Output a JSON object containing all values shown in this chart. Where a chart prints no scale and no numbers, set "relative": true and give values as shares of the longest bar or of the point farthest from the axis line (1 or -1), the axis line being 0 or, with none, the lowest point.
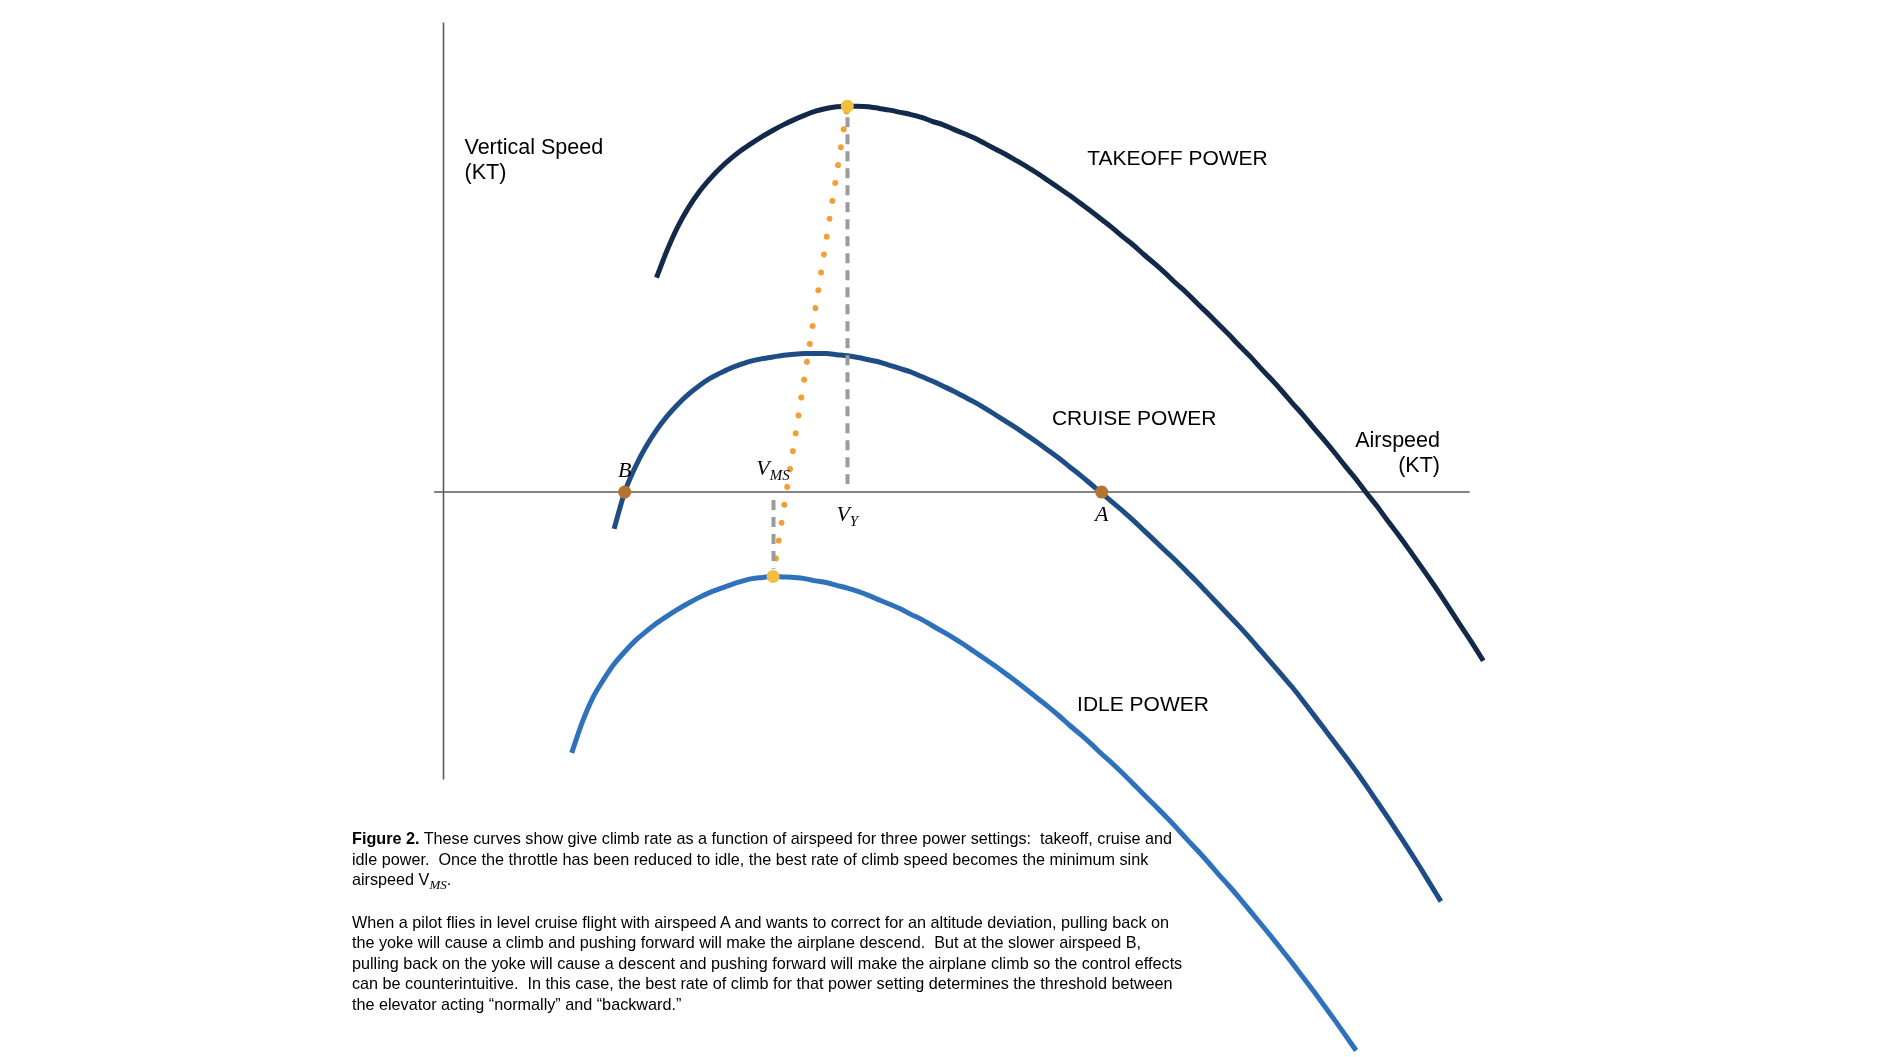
{
  "chart_data": {
    "type": "line",
    "relative": true,
    "xlabel": "Airspeed (KT)",
    "ylabel": "Vertical Speed (KT)",
    "marker": "none",
    "line_style": "solid",
    "grid": false,
    "legend": false,
    "tick_labels": "x",
    "categories": [
      null,
      null,
      null,
      null,
      null,
      "B",
      null,
      null,
      null,
      null,
      null,
      null,
      null,
      null,
      null,
      null,
      null,
      null,
      null,
      "V$_{MS}$",
      null,
      null,
      null,
      null,
      null,
      null,
      "V$_{Y}$",
      null,
      null,
      null,
      null,
      null,
      null,
      null,
      null,
      null,
      null,
      null,
      null,
      null,
      null,
      null,
      null,
      null,
      null,
      null,
      null,
      null,
      null,
      null,
      "A",
      null,
      null,
      null,
      null,
      null,
      null,
      null,
      null,
      null,
      null,
      null,
      null,
      null,
      null,
      null,
      null,
      null,
      null,
      null,
      null,
      null,
      null,
      null,
      null,
      null,
      null,
      null,
      null,
      null,
      null,
      null,
      null,
      null,
      null,
      null,
      null
    ],
    "series": [
      {
        "name": "TAKEOFF POWER",
        "color": "#13294a",
        "values": [
          null,
          null,
          null,
          null,
          null,
          null,
          null,
          null,
          0.384,
          0.433,
          0.475,
          0.509,
          0.537,
          0.56,
          0.58,
          0.597,
          0.612,
          0.625,
          0.637,
          0.648,
          0.658,
          0.667,
          0.675,
          0.682,
          0.687,
          0.69,
          0.691,
          0.691,
          0.69,
          0.687,
          0.684,
          0.68,
          0.676,
          0.671,
          0.664,
          0.658,
          0.65,
          0.642,
          0.634,
          0.624,
          0.614,
          0.604,
          0.593,
          0.582,
          0.57,
          0.557,
          0.544,
          0.531,
          0.517,
          0.503,
          0.488,
          0.473,
          0.457,
          0.442,
          0.425,
          0.409,
          0.392,
          0.374,
          0.357,
          0.338,
          0.32,
          0.301,
          0.282,
          0.262,
          0.243,
          0.222,
          0.202,
          0.181,
          0.159,
          0.138,
          0.115,
          0.093,
          0.07,
          0.046,
          0.023,
          -0.002,
          -0.026,
          -0.052,
          -0.077,
          -0.103,
          -0.13,
          -0.157,
          -0.185,
          -0.214,
          -0.243,
          -0.272,
          -0.302
        ]
      },
      {
        "name": "CRUISE POWER",
        "color": "#1e4d85",
        "values": [
          null,
          null,
          null,
          null,
          -0.066,
          0,
          0.045,
          0.081,
          0.111,
          0.136,
          0.157,
          0.175,
          0.19,
          0.203,
          0.213,
          0.222,
          0.229,
          0.235,
          0.239,
          0.242,
          0.245,
          0.247,
          0.248,
          0.248,
          0.248,
          0.246,
          0.244,
          0.241,
          0.237,
          0.233,
          0.227,
          0.221,
          0.215,
          0.207,
          0.199,
          0.19,
          0.181,
          0.171,
          0.161,
          0.15,
          0.138,
          0.126,
          0.114,
          0.101,
          0.088,
          0.074,
          0.06,
          0.045,
          0.03,
          0.014,
          -0.002,
          -0.018,
          -0.034,
          -0.051,
          -0.069,
          -0.087,
          -0.105,
          -0.123,
          -0.142,
          -0.161,
          -0.181,
          -0.201,
          -0.221,
          -0.241,
          -0.262,
          -0.284,
          -0.306,
          -0.328,
          -0.35,
          -0.374,
          -0.399,
          -0.424,
          -0.449,
          -0.474,
          -0.5,
          -0.527,
          -0.555,
          -0.583,
          -0.612,
          -0.641,
          -0.671,
          -0.702,
          -0.733,
          null,
          null,
          null,
          null
        ]
      },
      {
        "name": "IDLE POWER",
        "color": "#2e72bd",
        "values": [
          -0.467,
          -0.412,
          -0.368,
          -0.336,
          -0.308,
          -0.286,
          -0.266,
          -0.25,
          -0.235,
          -0.222,
          -0.21,
          -0.199,
          -0.189,
          -0.18,
          -0.173,
          -0.166,
          -0.16,
          -0.155,
          -0.153,
          -0.151,
          -0.152,
          -0.153,
          -0.155,
          -0.159,
          -0.162,
          -0.167,
          -0.172,
          -0.178,
          -0.185,
          -0.193,
          -0.201,
          -0.209,
          -0.219,
          -0.228,
          -0.239,
          -0.25,
          -0.261,
          -0.273,
          -0.286,
          -0.299,
          -0.312,
          -0.326,
          -0.34,
          -0.355,
          -0.37,
          -0.385,
          -0.401,
          -0.418,
          -0.434,
          -0.451,
          -0.469,
          -0.486,
          -0.504,
          -0.523,
          -0.542,
          -0.561,
          -0.58,
          -0.6,
          -0.621,
          -0.641,
          -0.662,
          -0.684,
          -0.705,
          -0.727,
          -0.75,
          -0.773,
          -0.796,
          -0.82,
          -0.844,
          -0.869,
          -0.894,
          -0.92,
          -0.946,
          -0.973,
          -1,
          null,
          null,
          null,
          null,
          null,
          null,
          null,
          null,
          null,
          null,
          null,
          null
        ]
      },
      {
        "color": "#f0a035",
        "line_style": "dotted",
        "values": [
          null,
          null,
          null,
          null,
          null,
          null,
          null,
          null,
          null,
          null,
          null,
          null,
          null,
          null,
          null,
          null,
          null,
          null,
          null,
          -0.151,
          null,
          null,
          null,
          null,
          null,
          null,
          0.691,
          null,
          null,
          null,
          null,
          null,
          null,
          null,
          null,
          null,
          null,
          null,
          null,
          null,
          null,
          null,
          null,
          null,
          null,
          null,
          null,
          null,
          null,
          null,
          null,
          null,
          null,
          null,
          null,
          null,
          null,
          null,
          null,
          null,
          null,
          null,
          null,
          null,
          null,
          null,
          null,
          null,
          null,
          null,
          null,
          null,
          null,
          null,
          null,
          null,
          null,
          null,
          null,
          null,
          null,
          null,
          null,
          null,
          null,
          null,
          null
        ]
      },
      {
        "type": "scatter",
        "color": "#f1c040",
        "marker": "circle",
        "values": [
          null,
          null,
          null,
          null,
          null,
          null,
          null,
          null,
          null,
          null,
          null,
          null,
          null,
          null,
          null,
          null,
          null,
          null,
          null,
          -0.151,
          null,
          null,
          null,
          null,
          null,
          null,
          0.691,
          null,
          null,
          null,
          null,
          null,
          null,
          null,
          null,
          null,
          null,
          null,
          null,
          null,
          null,
          null,
          null,
          null,
          null,
          null,
          null,
          null,
          null,
          null,
          null,
          null,
          null,
          null,
          null,
          null,
          null,
          null,
          null,
          null,
          null,
          null,
          null,
          null,
          null,
          null,
          null,
          null,
          null,
          null,
          null,
          null,
          null,
          null,
          null,
          null,
          null,
          null,
          null,
          null,
          null,
          null,
          null,
          null,
          null,
          null,
          null
        ]
      },
      {
        "type": "scatter",
        "color": "#b5732e",
        "marker": "circle",
        "values": [
          null,
          null,
          null,
          null,
          null,
          0,
          null,
          null,
          null,
          null,
          null,
          null,
          null,
          null,
          null,
          null,
          null,
          null,
          null,
          null,
          null,
          null,
          null,
          null,
          null,
          null,
          null,
          null,
          null,
          null,
          null,
          null,
          null,
          null,
          null,
          null,
          null,
          null,
          null,
          null,
          null,
          null,
          null,
          null,
          null,
          null,
          null,
          null,
          null,
          null,
          0,
          null,
          null,
          null,
          null,
          null,
          null,
          null,
          null,
          null,
          null,
          null,
          null,
          null,
          null,
          null,
          null,
          null,
          null,
          null,
          null,
          null,
          null,
          null,
          null,
          null,
          null,
          null,
          null,
          null,
          null,
          null,
          null,
          null,
          null,
          null,
          null
        ]
      }
    ],
    "annotations": [
      "Figure 2. These curves show give climb rate as a function of airspeed for three power settings:  takeoff, cruise and idle power.  Once the throttle has been reduced to idle, the best rate of climb speed becomes the minimum sink airspeed V$_{MS}$.",
      "When a pilot flies in level cruise flight with airspeed A and wants to correct for an altitude deviation, pulling back on the yoke will cause a climb and pushing forward will make the airplane descend.  But at the slower airspeed B, pulling back on the yoke will cause a descent and pushing forward will make the airplane climb so the control effects can be counterintuitive.  In this case, the best rate of climb for that power setting determines the threshold between the elevator acting “normally” and “backward.”"
    ]
  }
}
